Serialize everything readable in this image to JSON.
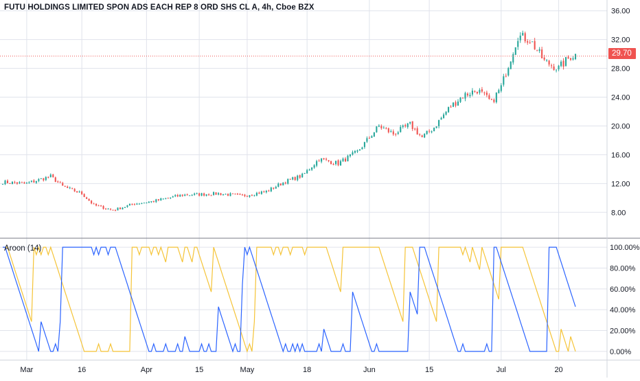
{
  "header": {
    "title": "FUTU HOLDINGS LIMITED SPON ADS EACH REP 8 ORD SHS CL A, 4h, Cboe BZX"
  },
  "indicator": {
    "title": "Aroon (14)"
  },
  "last_price": {
    "label": "29.70",
    "value": 29.7,
    "color": "#ef5350"
  },
  "colors": {
    "up": "#26a69a",
    "down": "#ef5350",
    "aroon_up": "#f5c335",
    "aroon_down": "#2962ff",
    "grid": "#e0e3eb",
    "axis_text": "#131722"
  },
  "chart_data": [
    {
      "type": "candlestick",
      "title": "FUTU HOLDINGS LIMITED SPON ADS EACH REP 8 ORD SHS CL A, 4h, Cboe BZX",
      "ylim": [
        4.5,
        37.5
      ],
      "y_ticks": [
        "36.00",
        "32.00",
        "28.00",
        "24.00",
        "20.00",
        "16.00",
        "12.00",
        "8.00"
      ],
      "y_tick_values": [
        36,
        32,
        28,
        24,
        20,
        16,
        12,
        8
      ],
      "x_ticks": [
        "Mar",
        "16",
        "Apr",
        "15",
        "May",
        "18",
        "Jun",
        "15",
        "Jul",
        "20"
      ],
      "x_tick_index": [
        10,
        33,
        60,
        82,
        102,
        127,
        153,
        178,
        208,
        232
      ],
      "n_bars": 240,
      "anchors": [
        [
          0,
          12.2
        ],
        [
          10,
          12.0
        ],
        [
          20,
          13.0
        ],
        [
          25,
          11.6
        ],
        [
          33,
          10.6
        ],
        [
          38,
          9.0
        ],
        [
          46,
          8.3
        ],
        [
          55,
          9.2
        ],
        [
          62,
          9.5
        ],
        [
          75,
          10.4
        ],
        [
          90,
          10.6
        ],
        [
          100,
          10.3
        ],
        [
          110,
          10.9
        ],
        [
          118,
          12.3
        ],
        [
          125,
          13.1
        ],
        [
          132,
          15.4
        ],
        [
          140,
          14.8
        ],
        [
          148,
          16.4
        ],
        [
          157,
          20.0
        ],
        [
          163,
          18.9
        ],
        [
          170,
          20.2
        ],
        [
          175,
          18.4
        ],
        [
          180,
          19.8
        ],
        [
          186,
          22.4
        ],
        [
          192,
          24.2
        ],
        [
          198,
          25.0
        ],
        [
          204,
          23.3
        ],
        [
          208,
          25.4
        ],
        [
          211,
          28.5
        ],
        [
          215,
          32.5
        ],
        [
          220,
          32.0
        ],
        [
          226,
          29.0
        ],
        [
          232,
          28.0
        ],
        [
          237,
          29.7
        ]
      ]
    },
    {
      "type": "line",
      "title": "Aroon (14)",
      "period": 14,
      "ylim": [
        -8,
        108
      ],
      "y_ticks": [
        "100.00%",
        "80.00%",
        "60.00%",
        "40.00%",
        "20.00%",
        "0.00%"
      ],
      "y_tick_values": [
        100,
        80,
        60,
        40,
        20,
        0
      ],
      "series": [
        {
          "name": "Aroon Up",
          "color": "#f5c335"
        },
        {
          "name": "Aroon Down",
          "color": "#2962ff"
        }
      ]
    }
  ]
}
